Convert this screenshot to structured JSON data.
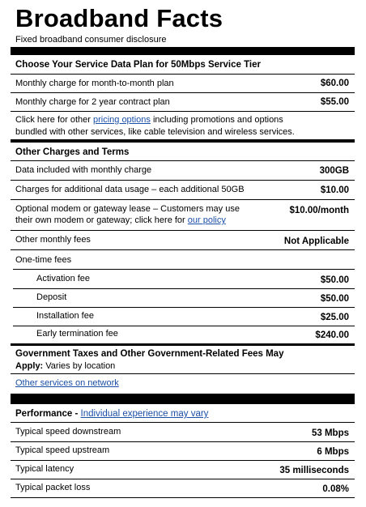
{
  "header": {
    "title": "Broadband Facts",
    "subtitle": "Fixed broadband consumer disclosure"
  },
  "plan": {
    "heading": "Choose Your Service Data Plan for 50Mbps Service Tier",
    "rows": [
      {
        "label": "Monthly charge for month-to-month plan",
        "value": "$60.00"
      },
      {
        "label": "Monthly charge for 2 year contract plan",
        "value": "$55.00"
      }
    ],
    "note_prefix": "Click here for other ",
    "note_link": "pricing options",
    "note_suffix": " including promotions and options",
    "note_line2": "bundled with other services, like cable television and wireless services."
  },
  "other_charges": {
    "heading": "Other Charges and Terms",
    "data_included": {
      "label": "Data included with monthly charge",
      "value": "300GB"
    },
    "additional": {
      "label": "Charges for additional data usage – each additional 50GB",
      "value": "$10.00"
    },
    "modem": {
      "line1": "Optional modem or gateway lease – Customers may use",
      "line2_prefix": "their own modem or gateway; click here for ",
      "line2_link": "our policy",
      "value": "$10.00/month"
    },
    "monthly_fees": {
      "label": "Other monthly fees",
      "value": "Not Applicable"
    },
    "one_time_label": "One-time fees",
    "one_time": [
      {
        "label": "Activation fee",
        "value": "$50.00"
      },
      {
        "label": "Deposit",
        "value": "$50.00"
      },
      {
        "label": "Installation fee",
        "value": "$25.00"
      },
      {
        "label": "Early termination fee",
        "value": "$240.00"
      }
    ]
  },
  "taxes": {
    "heading_line1": "Government Taxes and Other Government-Related Fees May",
    "heading_line2_bold": "Apply:",
    "heading_line2_rest": " Varies by location",
    "other_services_link": "Other services on network"
  },
  "performance": {
    "heading": "Performance - ",
    "heading_link": "Individual experience may vary",
    "rows": [
      {
        "label": "Typical speed downstream",
        "value": "53 Mbps"
      },
      {
        "label": "Typical speed upstream",
        "value": "6 Mbps"
      },
      {
        "label": "Typical latency",
        "value": "35 milliseconds"
      },
      {
        "label": "Typical packet loss",
        "value": "0.08%"
      }
    ]
  }
}
